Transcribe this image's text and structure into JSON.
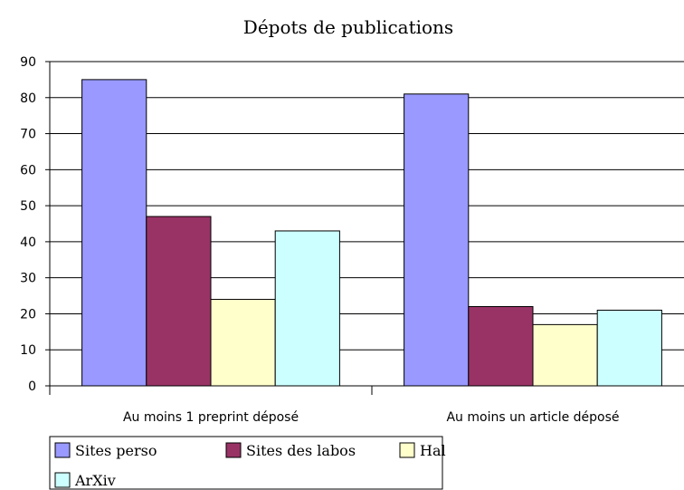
{
  "chart_data": {
    "type": "bar",
    "title": "Dépots de publications",
    "categories": [
      "Au moins 1 preprint déposé",
      "Au moins un article déposé"
    ],
    "series": [
      {
        "name": "Sites perso",
        "color": "#9999ff",
        "values": [
          85,
          81
        ]
      },
      {
        "name": "Sites des labos",
        "color": "#993366",
        "values": [
          47,
          22
        ]
      },
      {
        "name": "Hal",
        "color": "#ffffcc",
        "values": [
          24,
          17
        ]
      },
      {
        "name": "ArXiv",
        "color": "#ccffff",
        "values": [
          43,
          21
        ]
      }
    ],
    "ylim": [
      0,
      90
    ],
    "yticks": [
      0,
      10,
      20,
      30,
      40,
      50,
      60,
      70,
      80,
      90
    ],
    "grid": true,
    "legend": "bottom"
  }
}
